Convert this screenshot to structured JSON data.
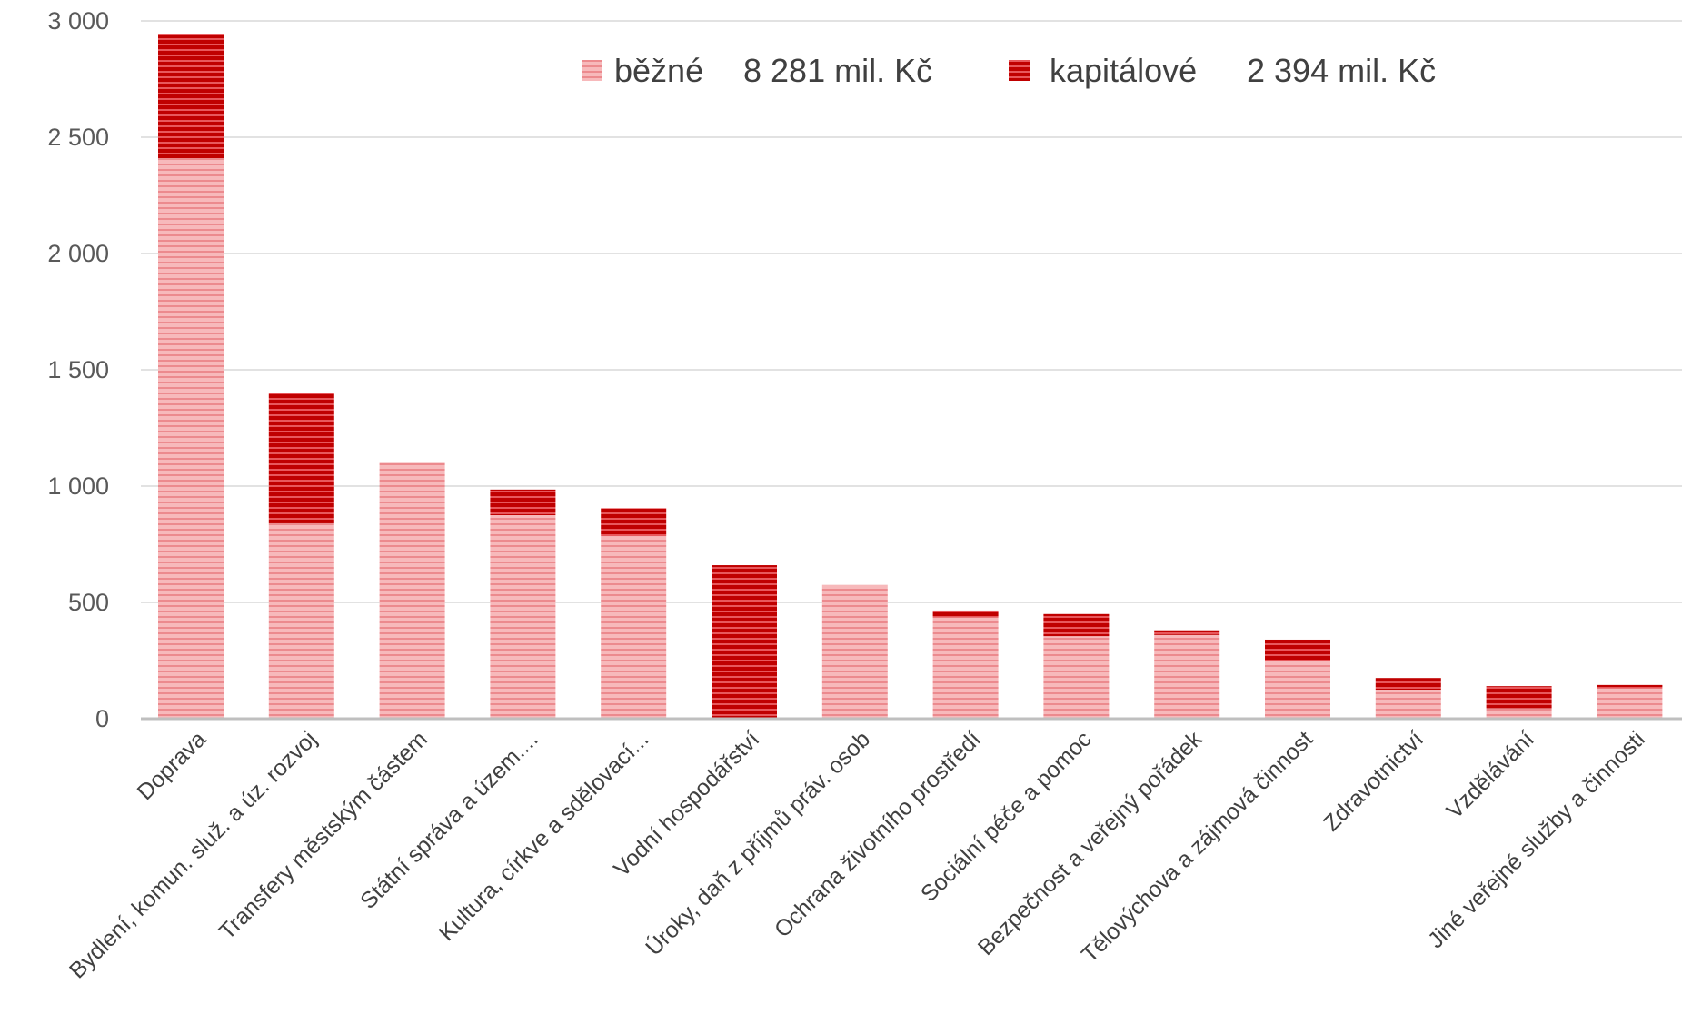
{
  "chart_data": {
    "type": "bar",
    "stacked": true,
    "categories": [
      "Doprava",
      "Bydlení, komun. služ. a úz. rozvoj",
      "Transfery městským částem",
      "Státní správa a územ....",
      "Kultura, církve a sdělovací...",
      "Vodní hospodářství",
      "Úroky, daň z příjmů práv. osob",
      "Ochrana životního prostředí",
      "Sociální péče a pomoc",
      "Bezpečnost a veřejný pořádek",
      "Tělovýchova a zájmová činnost",
      "Zdravotnictví",
      "Vzdělávání",
      "Jiné veřejné služby a činnosti"
    ],
    "series": [
      {
        "name": "běžné",
        "total_label": "8 281 mil. Kč",
        "color": "#f4a6a8",
        "values": [
          2410,
          840,
          1100,
          875,
          785,
          0,
          575,
          435,
          355,
          360,
          250,
          125,
          45,
          130
        ]
      },
      {
        "name": "kapitálové",
        "total_label": "2 394 mil. Kč",
        "color": "#c00000",
        "values": [
          535,
          560,
          0,
          110,
          120,
          660,
          0,
          30,
          95,
          20,
          90,
          50,
          95,
          15
        ]
      }
    ],
    "yticks": [
      "0",
      "500",
      "1 000",
      "1 500",
      "2 000",
      "2 500",
      "3 000"
    ],
    "ylim": [
      0,
      3000
    ],
    "grid": true,
    "legend_position": "top-right"
  }
}
